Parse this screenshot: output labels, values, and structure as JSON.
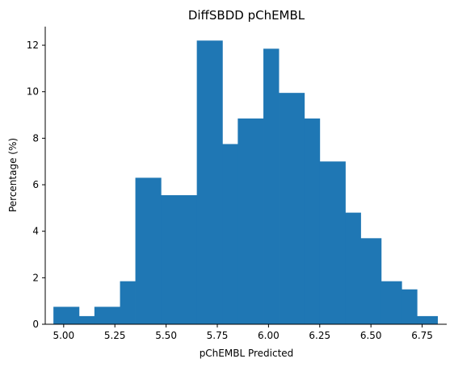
{
  "chart_data": {
    "type": "bar",
    "title": "DiffSBDD pChEMBL",
    "xlabel": "pChEMBL Predicted",
    "ylabel": "Percentage (%)",
    "xlim": [
      4.91,
      6.87
    ],
    "ylim": [
      0,
      12.8
    ],
    "x_ticks": [
      5.0,
      5.25,
      5.5,
      5.75,
      6.0,
      6.25,
      6.5,
      6.75
    ],
    "x_tick_labels": [
      "5.00",
      "5.25",
      "5.50",
      "5.75",
      "6.00",
      "6.25",
      "6.50",
      "6.75"
    ],
    "y_ticks": [
      0,
      2,
      4,
      6,
      8,
      10,
      12
    ],
    "y_tick_labels": [
      "0",
      "2",
      "4",
      "6",
      "8",
      "10",
      "12"
    ],
    "bar_color": "#1f77b4",
    "grid": false,
    "bins": [
      {
        "x0": 4.95,
        "x1": 5.075,
        "value": 0.75
      },
      {
        "x0": 5.075,
        "x1": 5.15,
        "value": 0.35
      },
      {
        "x0": 5.15,
        "x1": 5.275,
        "value": 0.75
      },
      {
        "x0": 5.275,
        "x1": 5.35,
        "value": 1.85
      },
      {
        "x0": 5.35,
        "x1": 5.475,
        "value": 6.3
      },
      {
        "x0": 5.475,
        "x1": 5.65,
        "value": 5.55
      },
      {
        "x0": 5.65,
        "x1": 5.775,
        "value": 12.2
      },
      {
        "x0": 5.775,
        "x1": 5.85,
        "value": 7.75
      },
      {
        "x0": 5.85,
        "x1": 5.975,
        "value": 8.85
      },
      {
        "x0": 5.975,
        "x1": 6.05,
        "value": 11.85
      },
      {
        "x0": 6.05,
        "x1": 6.175,
        "value": 9.95
      },
      {
        "x0": 6.175,
        "x1": 6.25,
        "value": 8.85
      },
      {
        "x0": 6.25,
        "x1": 6.375,
        "value": 7.0
      },
      {
        "x0": 6.375,
        "x1": 6.45,
        "value": 4.8
      },
      {
        "x0": 6.45,
        "x1": 6.55,
        "value": 3.7
      },
      {
        "x0": 6.55,
        "x1": 6.65,
        "value": 1.85
      },
      {
        "x0": 6.65,
        "x1": 6.725,
        "value": 1.5
      },
      {
        "x0": 6.725,
        "x1": 6.825,
        "value": 0.35
      }
    ]
  }
}
